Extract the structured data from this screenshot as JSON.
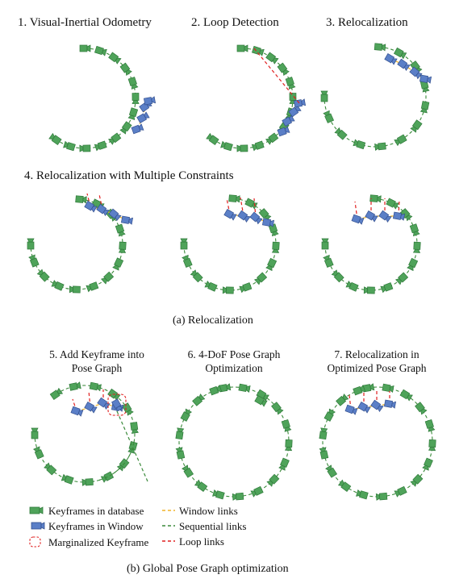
{
  "section_a": {
    "panel_titles": [
      "1. Visual-Inertial Odometry",
      "2. Loop Detection",
      "3. Relocalization"
    ],
    "row2_title": "4. Relocalization with Multiple Constraints",
    "caption": "(a)  Relocalization"
  },
  "section_b": {
    "panel_titles": [
      "5. Add Keyframe into\nPose Graph",
      "6. 4-DoF Pose Graph\nOptimization",
      "7. Relocalization in\nOptimized Pose Graph"
    ],
    "caption": "(b)  Global Pose Graph optimization"
  },
  "legend": {
    "keyframes_db": "Keyframes in database",
    "keyframes_window": "Keyframes in Window",
    "marginalized": "Marginalized Keyframe",
    "window_links": "Window links",
    "sequential_links": "Sequential links",
    "loop_links": "Loop links"
  },
  "colors": {
    "db_keyframe": "#4fa35a",
    "window_keyframe": "#5b7fc7",
    "window_link": "#f0b429",
    "sequential_link": "#3a8a3a",
    "loop_link": "#e01f1f"
  }
}
